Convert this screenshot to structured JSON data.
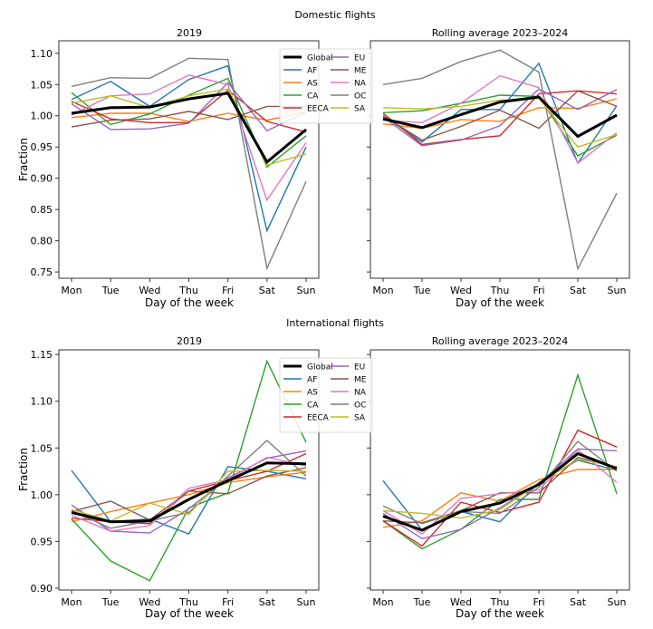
{
  "chart_data": {
    "type": "line",
    "days": [
      "Mon",
      "Tue",
      "Wed",
      "Thu",
      "Fri",
      "Sat",
      "Sun"
    ],
    "rows": [
      {
        "title": "Domestic flights",
        "ylabel": "Fraction",
        "ylim": [
          0.74,
          1.12
        ],
        "yticks": [
          "0.75",
          "0.80",
          "0.85",
          "0.90",
          "0.95",
          "1.00",
          "1.05",
          "1.10"
        ],
        "yticks_values": [
          0.75,
          0.8,
          0.85,
          0.9,
          0.95,
          1.0,
          1.05,
          1.1
        ],
        "panels": [
          {
            "title": "2019",
            "xlabel": "Day of the week",
            "series": [
              {
                "name": "AF",
                "values": [
                  1.026,
                  1.055,
                  1.015,
                  1.058,
                  1.08,
                  0.816,
                  0.95
                ]
              },
              {
                "name": "AS",
                "values": [
                  0.997,
                  1.004,
                  1.004,
                  0.991,
                  1.004,
                  0.993,
                  1.006
                ]
              },
              {
                "name": "CA",
                "values": [
                  1.037,
                  0.986,
                  1.003,
                  1.033,
                  1.06,
                  0.918,
                  0.968
                ]
              },
              {
                "name": "EECA",
                "values": [
                  1.023,
                  0.995,
                  0.989,
                  0.989,
                  1.041,
                  0.991,
                  0.974
                ]
              },
              {
                "name": "EU",
                "values": [
                  1.019,
                  0.978,
                  0.979,
                  0.988,
                  1.053,
                  0.976,
                  1.006
                ]
              },
              {
                "name": "ME",
                "values": [
                  0.982,
                  0.993,
                  0.995,
                  1.007,
                  0.994,
                  1.015,
                  1.015
                ]
              },
              {
                "name": "NA",
                "values": [
                  1.001,
                  1.032,
                  1.035,
                  1.065,
                  1.05,
                  0.865,
                  0.957
                ]
              },
              {
                "name": "OC",
                "values": [
                  1.047,
                  1.061,
                  1.06,
                  1.092,
                  1.09,
                  0.756,
                  0.895
                ]
              },
              {
                "name": "SA",
                "values": [
                  1.02,
                  1.032,
                  1.013,
                  1.032,
                  1.043,
                  0.921,
                  0.939
                ]
              },
              {
                "name": "Global",
                "values": [
                  1.004,
                  1.013,
                  1.014,
                  1.027,
                  1.036,
                  0.926,
                  0.978
                ]
              }
            ]
          },
          {
            "title": "Rolling average 2023–2024",
            "xlabel": "Day of the week",
            "series": [
              {
                "name": "AF",
                "values": [
                  1.0,
                  0.958,
                  1.01,
                  1.01,
                  1.084,
                  0.924,
                  1.016
                ]
              },
              {
                "name": "AS",
                "values": [
                  0.987,
                  0.98,
                  0.994,
                  0.991,
                  1.013,
                  1.012,
                  1.027
                ]
              },
              {
                "name": "CA",
                "values": [
                  1.005,
                  1.008,
                  1.02,
                  1.033,
                  1.031,
                  0.936,
                  0.969
                ]
              },
              {
                "name": "EECA",
                "values": [
                  1.004,
                  0.954,
                  0.962,
                  0.968,
                  1.035,
                  1.04,
                  1.035
                ]
              },
              {
                "name": "EU",
                "values": [
                  0.998,
                  0.952,
                  0.961,
                  0.984,
                  1.043,
                  1.01,
                  1.042
                ]
              },
              {
                "name": "ME",
                "values": [
                  1.0,
                  0.961,
                  0.983,
                  1.009,
                  0.98,
                  1.04,
                  1.015
                ]
              },
              {
                "name": "NA",
                "values": [
                  0.993,
                  0.989,
                  1.02,
                  1.064,
                  1.045,
                  0.924,
                  0.973
                ]
              },
              {
                "name": "OC",
                "values": [
                  1.05,
                  1.06,
                  1.087,
                  1.105,
                  1.07,
                  0.755,
                  0.876
                ]
              },
              {
                "name": "SA",
                "values": [
                  1.013,
                  1.011,
                  1.015,
                  1.025,
                  1.028,
                  0.95,
                  0.97
                ]
              },
              {
                "name": "Global",
                "values": [
                  0.995,
                  0.981,
                  1.002,
                  1.022,
                  1.03,
                  0.967,
                  1.001
                ]
              }
            ]
          }
        ]
      },
      {
        "title": "International flights",
        "ylabel": "Fraction",
        "ylim": [
          0.898,
          1.155
        ],
        "yticks": [
          "0.90",
          "0.95",
          "1.00",
          "1.05",
          "1.10",
          "1.15"
        ],
        "yticks_values": [
          0.9,
          0.95,
          1.0,
          1.05,
          1.1,
          1.15
        ],
        "panels": [
          {
            "title": "2019",
            "xlabel": "Day of the week",
            "series": [
              {
                "name": "AF",
                "values": [
                  1.026,
                  0.971,
                  0.974,
                  0.958,
                  1.03,
                  1.025,
                  1.017
                ]
              },
              {
                "name": "AS",
                "values": [
                  0.971,
                  0.982,
                  0.991,
                  1.0,
                  1.013,
                  1.019,
                  1.024
                ]
              },
              {
                "name": "CA",
                "values": [
                  0.974,
                  0.929,
                  0.908,
                  0.986,
                  1.002,
                  1.143,
                  1.056
                ]
              },
              {
                "name": "EECA",
                "values": [
                  0.975,
                  0.971,
                  0.969,
                  1.004,
                  1.015,
                  1.025,
                  1.044
                ]
              },
              {
                "name": "EU",
                "values": [
                  0.989,
                  0.961,
                  0.959,
                  0.985,
                  1.018,
                  1.039,
                  1.047
                ]
              },
              {
                "name": "ME",
                "values": [
                  0.982,
                  0.993,
                  0.973,
                  1.004,
                  1.001,
                  1.02,
                  1.029
                ]
              },
              {
                "name": "NA",
                "values": [
                  0.978,
                  0.961,
                  0.967,
                  1.007,
                  1.016,
                  1.04,
                  1.031
                ]
              },
              {
                "name": "OC",
                "values": [
                  0.983,
                  0.964,
                  0.972,
                  0.981,
                  1.02,
                  1.058,
                  1.02
                ]
              },
              {
                "name": "SA",
                "values": [
                  0.984,
                  0.972,
                  0.991,
                  0.979,
                  1.025,
                  1.026,
                  1.025
                ]
              },
              {
                "name": "Global",
                "values": [
                  0.981,
                  0.971,
                  0.972,
                  0.995,
                  1.015,
                  1.034,
                  1.033
                ]
              }
            ]
          },
          {
            "title": "Rolling average 2023–2024",
            "xlabel": "Day of the week",
            "series": [
              {
                "name": "AF",
                "values": [
                  1.015,
                  0.962,
                  0.982,
                  0.971,
                  1.013,
                  1.037,
                  1.026
                ]
              },
              {
                "name": "AS",
                "values": [
                  0.965,
                  0.972,
                  1.002,
                  0.993,
                  1.016,
                  1.027,
                  1.027
                ]
              },
              {
                "name": "CA",
                "values": [
                  0.972,
                  0.942,
                  0.963,
                  0.995,
                  0.995,
                  1.128,
                  1.001
                ]
              },
              {
                "name": "EECA",
                "values": [
                  0.972,
                  0.945,
                  0.992,
                  0.981,
                  0.992,
                  1.069,
                  1.051
                ]
              },
              {
                "name": "EU",
                "values": [
                  0.98,
                  0.953,
                  0.963,
                  0.986,
                  1.012,
                  1.049,
                  1.047
                ]
              },
              {
                "name": "ME",
                "values": [
                  0.972,
                  0.97,
                  0.983,
                  1.002,
                  1.002,
                  1.04,
                  1.029
                ]
              },
              {
                "name": "NA",
                "values": [
                  0.983,
                  0.958,
                  0.996,
                  1.001,
                  1.005,
                  1.048,
                  1.013
                ]
              },
              {
                "name": "OC",
                "values": [
                  0.988,
                  0.969,
                  0.982,
                  0.98,
                  1.008,
                  1.057,
                  1.025
                ]
              },
              {
                "name": "SA",
                "values": [
                  0.983,
                  0.98,
                  0.975,
                  0.984,
                  1.012,
                  1.038,
                  1.03
                ]
              },
              {
                "name": "Global",
                "values": [
                  0.977,
                  0.962,
                  0.982,
                  0.991,
                  1.011,
                  1.044,
                  1.028
                ]
              }
            ]
          }
        ]
      }
    ],
    "legend": {
      "placement": "top-center",
      "entries": [
        "Global",
        "AF",
        "AS",
        "CA",
        "EECA",
        "EU",
        "ME",
        "NA",
        "OC",
        "SA"
      ]
    },
    "colors": {
      "Global": "#000000",
      "AF": "#1f77b4",
      "AS": "#ff7f0e",
      "CA": "#2ca02c",
      "EECA": "#d62728",
      "EU": "#9467bd",
      "ME": "#8c564b",
      "NA": "#e377c2",
      "OC": "#7f7f7f",
      "SA": "#bcbd22"
    }
  }
}
